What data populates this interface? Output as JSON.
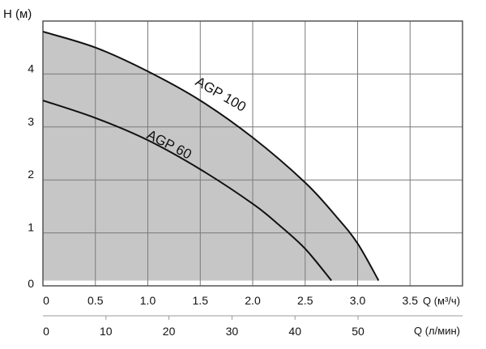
{
  "chart_data": {
    "type": "line",
    "title": "",
    "ylabel": "H (м)",
    "xlabel": "Q (м³/ч)",
    "x2label": "Q (л/мин)",
    "xlim": [
      0,
      4
    ],
    "ylim": [
      0,
      5
    ],
    "grid": true,
    "x_ticks": [
      0,
      0.5,
      1.0,
      1.5,
      2.0,
      2.5,
      3.0,
      3.5
    ],
    "x_tick_labels": [
      "0",
      "0.5",
      "1.0",
      "1.5",
      "2.0",
      "2.5",
      "3.0",
      "3.5"
    ],
    "y_ticks": [
      0,
      1,
      2,
      3,
      4
    ],
    "y_tick_labels": [
      "0",
      "1",
      "2",
      "3",
      "4"
    ],
    "x2_ticks": [
      0,
      10,
      20,
      30,
      40,
      50
    ],
    "x2_tick_labels": [
      "0",
      "10",
      "20",
      "30",
      "40",
      "50"
    ],
    "fill_color": "#c6c6c6",
    "series": [
      {
        "name": "AGP 100",
        "x": [
          0,
          0.5,
          1.0,
          1.5,
          2.0,
          2.5,
          2.8,
          3.0,
          3.2
        ],
        "y": [
          4.8,
          4.5,
          4.05,
          3.5,
          2.8,
          1.95,
          1.3,
          0.8,
          0.1
        ]
      },
      {
        "name": "AGP 60",
        "x": [
          0,
          0.5,
          1.0,
          1.5,
          2.0,
          2.25,
          2.5,
          2.75
        ],
        "y": [
          3.5,
          3.17,
          2.75,
          2.2,
          1.55,
          1.15,
          0.7,
          0.1
        ]
      }
    ]
  }
}
